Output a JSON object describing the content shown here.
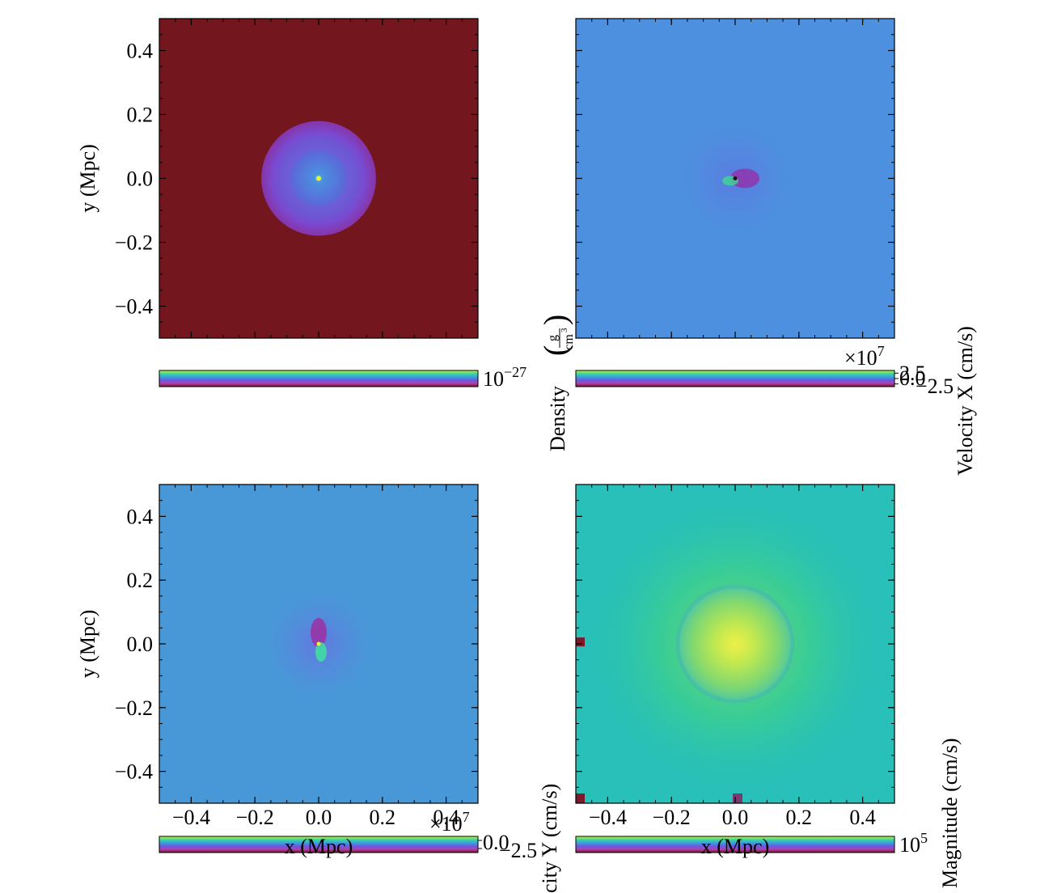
{
  "chart_data": [
    {
      "type": "heatmap",
      "field": "density",
      "ylabel": "y  (Mpc)",
      "xlabel": "",
      "xlim": [
        -0.5,
        0.5
      ],
      "ylim": [
        -0.5,
        0.5
      ],
      "yticks": [
        "0.4",
        "0.2",
        "0.0",
        "−0.2",
        "−0.4"
      ],
      "ytick_values": [
        0.4,
        0.2,
        0.0,
        -0.2,
        -0.4
      ],
      "xticks": [],
      "colorbar": {
        "label": "Density",
        "unit_top": "g",
        "unit_bottom": "cm",
        "unit_exp": "3",
        "tick_base": "10",
        "tick_exp": "−27",
        "offset": ""
      },
      "colors": {
        "background": "#74161d",
        "halo": "#6a40c8",
        "center": "#3ad0a0"
      }
    },
    {
      "type": "heatmap",
      "field": "velocity_x",
      "ylabel": "",
      "xlabel": "",
      "xlim": [
        -0.5,
        0.5
      ],
      "ylim": [
        -0.5,
        0.5
      ],
      "yticks": [],
      "xticks": [],
      "colorbar": {
        "label": "Velocity X  (cm/s)",
        "offset_base": "×10",
        "offset_exp": "7",
        "ticks": [
          "2.5",
          "0.0",
          "−2.5"
        ]
      },
      "colors": {
        "background": "#4d90df"
      }
    },
    {
      "type": "heatmap",
      "field": "velocity_y",
      "ylabel": "y  (Mpc)",
      "xlabel": "x  (Mpc)",
      "xlim": [
        -0.5,
        0.5
      ],
      "ylim": [
        -0.5,
        0.5
      ],
      "yticks": [
        "0.4",
        "0.2",
        "0.0",
        "−0.2",
        "−0.4"
      ],
      "ytick_values": [
        0.4,
        0.2,
        0.0,
        -0.2,
        -0.4
      ],
      "xticks": [
        "−0.4",
        "−0.2",
        "0.0",
        "0.2",
        "0.4"
      ],
      "xtick_values": [
        -0.4,
        -0.2,
        0.0,
        0.2,
        0.4
      ],
      "colorbar": {
        "label": "city Y  (cm/s)",
        "offset_base": "×10",
        "offset_exp": "7",
        "ticks": [
          "0.0",
          "−2.5"
        ]
      },
      "colors": {
        "background": "#4898d8"
      }
    },
    {
      "type": "heatmap",
      "field": "velocity_magnitude",
      "ylabel": "",
      "xlabel": "x  (Mpc)",
      "xlim": [
        -0.5,
        0.5
      ],
      "ylim": [
        -0.5,
        0.5
      ],
      "yticks": [],
      "xticks": [
        "−0.4",
        "−0.2",
        "0.0",
        "0.2",
        "0.4"
      ],
      "xtick_values": [
        -0.4,
        -0.2,
        0.0,
        0.2,
        0.4
      ],
      "colorbar": {
        "label": "Magnitude  (cm/s)",
        "tick_base": "10",
        "tick_exp": "5"
      },
      "colors": {
        "background": "#28c0b8",
        "core": "#e6f050"
      }
    }
  ]
}
